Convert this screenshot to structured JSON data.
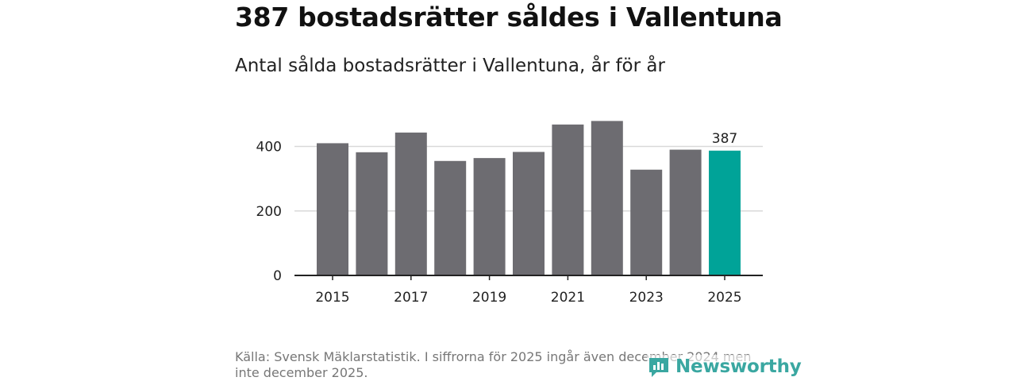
{
  "title": "387 bostadsrätter såldes i Vallentuna",
  "subtitle": "Antal sålda bostadsrätter i Vallentuna, år för år",
  "source": "Källa: Svensk Mäklarstatistik. I siffrorna för 2025 ingår även december 2024 men inte december 2025.",
  "brand": {
    "name": "Newsworthy",
    "color": "#3aa7a1"
  },
  "colors": {
    "bar": "#6d6c71",
    "highlight": "#00a398",
    "grid": "#d9d9d9",
    "axis": "#222222"
  },
  "chart_data": {
    "type": "bar",
    "title": "Antal sålda bostadsrätter i Vallentuna, år för år",
    "xlabel": "",
    "ylabel": "",
    "categories": [
      "2015",
      "2016",
      "2017",
      "2018",
      "2019",
      "2020",
      "2021",
      "2022",
      "2023",
      "2024",
      "2025"
    ],
    "values": [
      410,
      382,
      443,
      355,
      364,
      383,
      468,
      479,
      328,
      390,
      387
    ],
    "ylim": [
      0,
      480
    ],
    "yticks": [
      0,
      200,
      400
    ],
    "xtick_labels": [
      "2015",
      "2017",
      "2019",
      "2021",
      "2023",
      "2025"
    ],
    "highlight_index": 10,
    "data_labels": [
      {
        "index": 10,
        "text": "387"
      }
    ],
    "grid": true
  }
}
